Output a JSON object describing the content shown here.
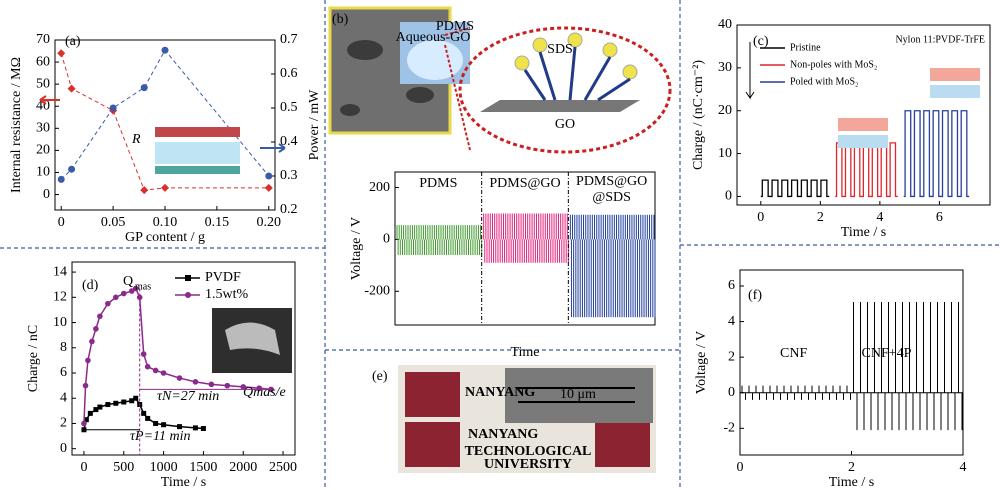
{
  "chart_data": [
    {
      "type": "scatter",
      "label": "(a)",
      "xlabel": "GP content / g",
      "ylabel": "Internal resistance / MΩ",
      "y2label": "Power / mW",
      "inset_label": "R",
      "xlim": [
        -0.006,
        0.206
      ],
      "xticks": [
        0,
        0.05,
        {
          "value": 0.1,
          "label": "0.10"
        },
        0.15,
        {
          "value": 0.2,
          "label": "0.20"
        }
      ],
      "ylim": [
        -7,
        70
      ],
      "yticks": [
        0,
        10,
        20,
        30,
        40,
        50,
        60,
        70
      ],
      "y2lim": [
        0.2,
        0.7
      ],
      "y2ticks": [
        0.2,
        0.3,
        0.4,
        0.5,
        0.6,
        0.7
      ],
      "x": [
        0,
        0.01,
        0.05,
        0.08,
        0.1,
        0.2
      ],
      "series": [
        {
          "name": "Internal resistance",
          "color": "#d9302c",
          "values": [
            64,
            48,
            38,
            2,
            3,
            3
          ]
        },
        {
          "name": "Power",
          "color": "#3a5ba8",
          "axis": "y2",
          "values": [
            0.29,
            0.32,
            0.5,
            0.56,
            0.67,
            0.3
          ]
        }
      ]
    },
    {
      "type": "signal",
      "label": "(b)",
      "texts": [
        "SDS",
        "GO",
        "PDMS",
        "Aqueous-GO"
      ],
      "ylabel": "Voltage / V",
      "xlabel": "Time",
      "ylim": [
        -330,
        260
      ],
      "yticks": [
        -200,
        0,
        200
      ],
      "segments": [
        {
          "name": "PDMS",
          "color": "#3e9a2c",
          "max": 55,
          "min": -60
        },
        {
          "name": "PDMS@GO",
          "color": "#e0207a",
          "max": 100,
          "min": -90
        },
        {
          "name": "PDMS@GO @SDS",
          "color": "#1f3f9a",
          "max": 95,
          "min": -300
        }
      ]
    },
    {
      "type": "square",
      "label": "(c)",
      "title": "Nylon 11:PVDF-TrFE",
      "ylabel": "Charge / (nC·cm⁻²)",
      "xlabel": "Time / s",
      "xlim": [
        -0.8,
        7.7
      ],
      "xticks": [
        0,
        2,
        4,
        6
      ],
      "ylim": [
        -2,
        40
      ],
      "yticks": [
        0,
        10,
        20,
        30,
        40
      ],
      "series": [
        {
          "name": "Pristine",
          "color": "#000000",
          "x": [
            0,
            2.3
          ],
          "values": [
            0,
            3.8
          ]
        },
        {
          "name": "Non-poles with MoS₂",
          "color": "#e0262a",
          "x": [
            2.5,
            4.6
          ],
          "values": [
            0,
            12.5
          ]
        },
        {
          "name": "Poled with MoS₂",
          "color": "#2a3f9a",
          "x": [
            4.8,
            7
          ],
          "values": [
            0,
            20
          ]
        }
      ]
    },
    {
      "type": "line",
      "label": "(d)",
      "ylabel": "Charge / nC",
      "xlabel": "Time / s",
      "annotations": [
        "Q",
        "mas",
        "τN=27 min",
        "τP=11 min",
        "Qmas/e"
      ],
      "xlim": [
        -150,
        2650
      ],
      "xticks": [
        0,
        500,
        1000,
        1500,
        2000,
        2500
      ],
      "ylim": [
        -0.5,
        14.8
      ],
      "yticks": [
        0,
        2,
        4,
        6,
        8,
        10,
        12,
        14
      ],
      "series": [
        {
          "name": "PVDF",
          "color": "#000000",
          "marker": "square",
          "x": [
            0,
            30,
            80,
            150,
            200,
            300,
            400,
            500,
            600,
            650,
            700,
            750,
            800,
            900,
            1000,
            1200,
            1400,
            1500
          ],
          "values": [
            1.5,
            2.3,
            2.8,
            3.1,
            3.3,
            3.5,
            3.6,
            3.7,
            3.8,
            4,
            3.5,
            2.8,
            2.4,
            2,
            1.9,
            1.75,
            1.65,
            1.6
          ]
        },
        {
          "name": "1.5wt%",
          "color": "#8b2a8c",
          "marker": "circle",
          "x": [
            0,
            20,
            50,
            100,
            150,
            200,
            300,
            400,
            500,
            600,
            650,
            700,
            750,
            800,
            900,
            1000,
            1200,
            1400,
            1600,
            1800,
            2000,
            2200,
            2350
          ],
          "values": [
            2,
            5,
            7,
            8.5,
            9.5,
            10.5,
            11.5,
            12,
            12.3,
            12.5,
            12.7,
            12,
            7.5,
            6.5,
            6.2,
            6,
            5.6,
            5.3,
            5.1,
            5,
            4.9,
            4.8,
            4.7
          ]
        }
      ]
    },
    {
      "type": "image",
      "label": "(e)",
      "scale": "10 μm",
      "logo": [
        "NANYANG",
        "TECHNOLOGICAL",
        "UNIVERSITY"
      ]
    },
    {
      "type": "signal",
      "label": "(f)",
      "ylabel": "Voltage / V",
      "xlabel": "Time / s",
      "xlim": [
        0,
        4
      ],
      "xticks": [
        0,
        2,
        4
      ],
      "ylim": [
        -3.5,
        6.9
      ],
      "yticks": [
        -2,
        0,
        2,
        4,
        6
      ],
      "segments": [
        {
          "name": "CNF",
          "color": "#000000",
          "x": [
            0,
            2
          ],
          "max": 0.4,
          "min": -0.4
        },
        {
          "name": "CNF+4P",
          "color": "#000000",
          "x": [
            2,
            4
          ],
          "max": 5.1,
          "min": -2.1
        }
      ]
    }
  ]
}
